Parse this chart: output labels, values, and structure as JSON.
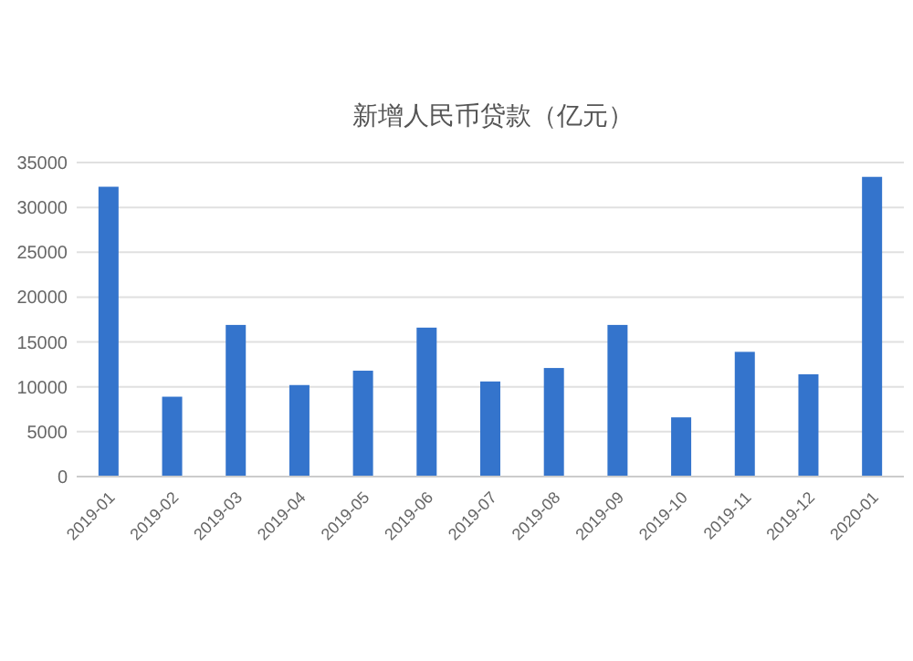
{
  "chart_data": {
    "type": "bar",
    "title": "新增人民币贷款（亿元）",
    "categories": [
      "2019-01",
      "2019-02",
      "2019-03",
      "2019-04",
      "2019-05",
      "2019-06",
      "2019-07",
      "2019-08",
      "2019-09",
      "2019-10",
      "2019-11",
      "2019-12",
      "2020-01"
    ],
    "values": [
      32300,
      8900,
      16900,
      10200,
      11800,
      16600,
      10600,
      12100,
      16900,
      6600,
      13900,
      11400,
      33400
    ],
    "color": "#3474cc",
    "ylim": [
      0,
      35000
    ],
    "yticks": [
      0,
      5000,
      10000,
      15000,
      20000,
      25000,
      30000,
      35000
    ],
    "grid": "y"
  }
}
